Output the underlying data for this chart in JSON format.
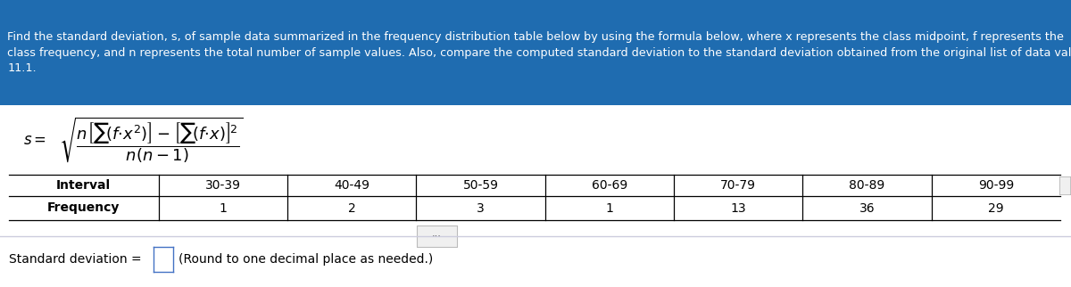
{
  "header_line1": "Find the standard deviation, s, of sample data summarized in the frequency distribution table below by using the formula below, where x represents the class midpoint, f represents the",
  "header_line2": "class frequency, and n represents the total number of sample values. Also, compare the computed standard deviation to the standard deviation obtained from the original list of data values,",
  "header_line3": "11.1.",
  "header_bg": "#1F6CB0",
  "header_text_color": "#FFFFFF",
  "header_fontsize": 9.2,
  "intervals": [
    "30-39",
    "40-49",
    "50-59",
    "60-69",
    "70-79",
    "80-89",
    "90-99"
  ],
  "frequencies": [
    "1",
    "2",
    "3",
    "1",
    "13",
    "36",
    "29"
  ],
  "interval_label": "Interval",
  "frequency_label": "Frequency",
  "footer_text": "Standard deviation =",
  "footer_note": "(Round to one decimal place as needed.)",
  "table_label_fontsize": 10,
  "table_data_fontsize": 10,
  "bg_color": "#FFFFFF",
  "border_color": "#4472C4",
  "divider_color": "#AAAACC"
}
